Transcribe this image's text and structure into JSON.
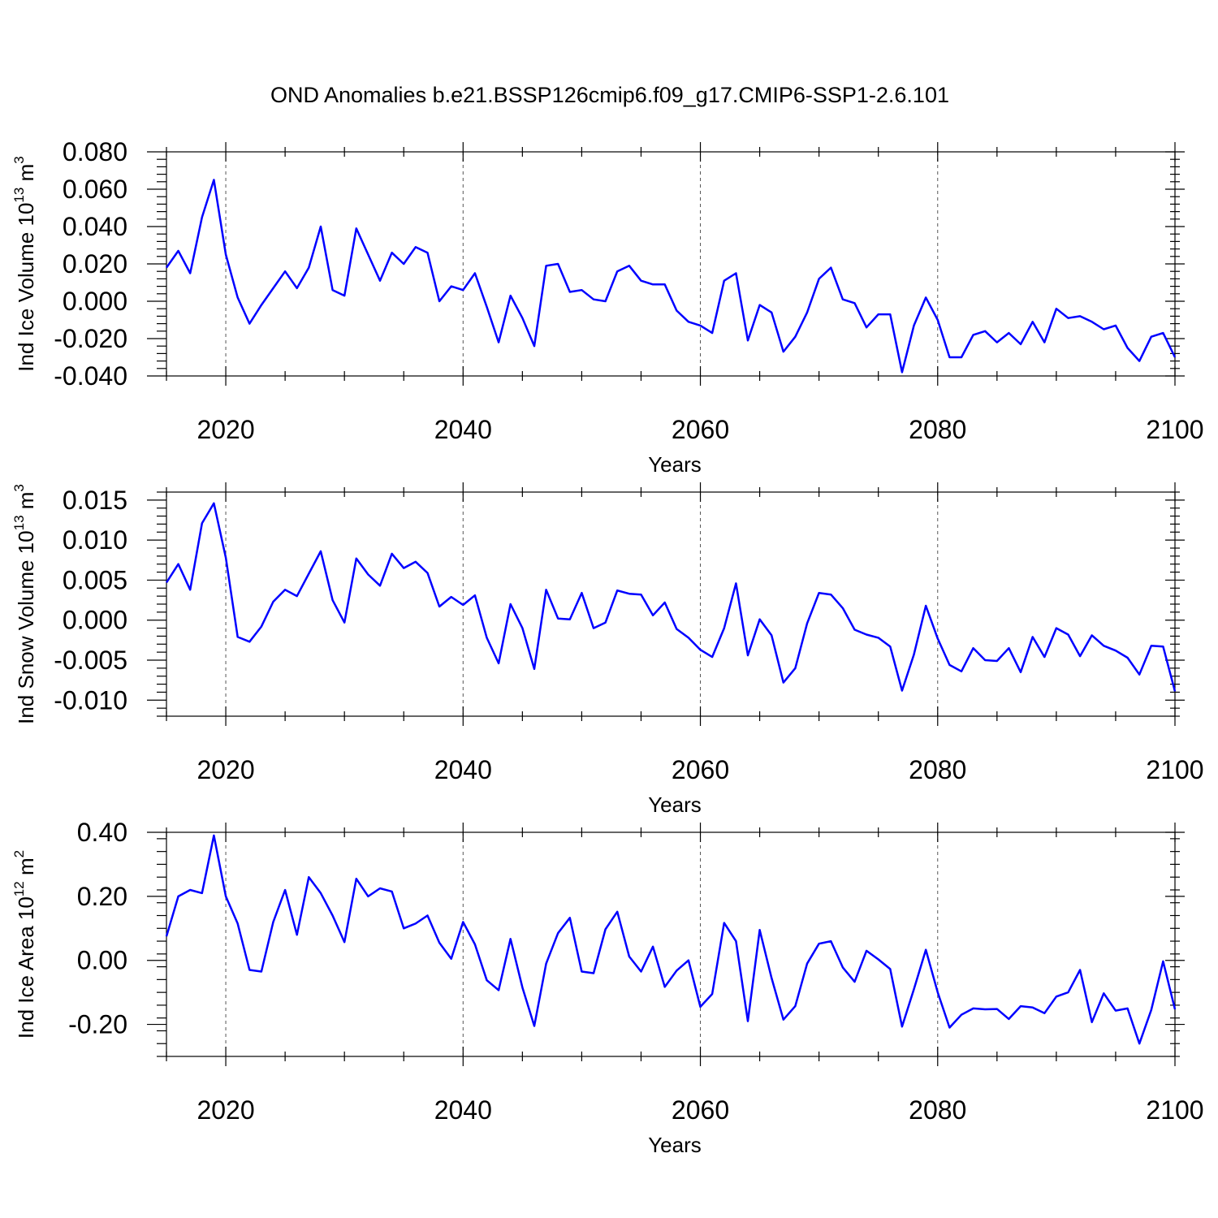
{
  "title": "OND Anomalies b.e21.BSSP126cmip6.f09_g17.CMIP6-SSP1-2.6.101",
  "colors": {
    "line": "#0000ff",
    "axis": "#000000",
    "grid": "#555555"
  },
  "chart_data": [
    {
      "type": "line",
      "ylabel": {
        "main": "Ind Ice Volume 10",
        "exp": "13",
        "unit": " m",
        "unit_exp": "3"
      },
      "xlabel": "Years",
      "xlim": [
        2015,
        2100
      ],
      "ylim": [
        -0.04,
        0.08
      ],
      "xticks": [
        2020,
        2040,
        2060,
        2080,
        2100
      ],
      "xtick_labels": [
        "2020",
        "2040",
        "2060",
        "2080",
        "2100"
      ],
      "yticks": [
        -0.04,
        -0.02,
        0.0,
        0.02,
        0.04,
        0.06,
        0.08
      ],
      "ytick_labels": [
        "-0.040",
        "-0.020",
        "0.000",
        "0.020",
        "0.040",
        "0.060",
        "0.080"
      ],
      "grid": "vertical dashed at major x ticks",
      "series": [
        {
          "x_start": 2015,
          "values": [
            0.018,
            0.027,
            0.015,
            0.045,
            0.065,
            0.025,
            0.002,
            -0.012,
            -0.002,
            0.007,
            0.016,
            0.007,
            0.018,
            0.04,
            0.006,
            0.003,
            0.039,
            0.025,
            0.011,
            0.026,
            0.02,
            0.029,
            0.026,
            0.0,
            0.008,
            0.006,
            0.015,
            -0.003,
            -0.022,
            0.003,
            -0.009,
            -0.024,
            0.019,
            0.02,
            0.005,
            0.006,
            0.001,
            0.0,
            0.016,
            0.019,
            0.011,
            0.009,
            0.009,
            -0.005,
            -0.011,
            -0.013,
            -0.017,
            0.011,
            0.015,
            -0.021,
            -0.002,
            -0.006,
            -0.027,
            -0.019,
            -0.006,
            0.012,
            0.018,
            0.001,
            -0.001,
            -0.014,
            -0.007,
            -0.007,
            -0.038,
            -0.013,
            0.002,
            -0.01,
            -0.03,
            -0.03,
            -0.018,
            -0.016,
            -0.022,
            -0.017,
            -0.023,
            -0.011,
            -0.022,
            -0.004,
            -0.009,
            -0.008,
            -0.011,
            -0.015,
            -0.013,
            -0.025,
            -0.032,
            -0.019,
            -0.017,
            -0.03
          ]
        }
      ]
    },
    {
      "type": "line",
      "ylabel": {
        "main": "Ind Snow Volume 10",
        "exp": "13",
        "unit": " m",
        "unit_exp": "3"
      },
      "xlabel": "Years",
      "xlim": [
        2015,
        2100
      ],
      "ylim": [
        -0.012,
        0.016
      ],
      "xticks": [
        2020,
        2040,
        2060,
        2080,
        2100
      ],
      "xtick_labels": [
        "2020",
        "2040",
        "2060",
        "2080",
        "2100"
      ],
      "yticks": [
        -0.01,
        -0.005,
        0.0,
        0.005,
        0.01,
        0.015
      ],
      "ytick_labels": [
        "-0.010",
        "-0.005",
        "0.000",
        "0.005",
        "0.010",
        "0.015"
      ],
      "grid": "vertical dashed at major x ticks",
      "series": [
        {
          "x_start": 2015,
          "values": [
            0.0047,
            0.007,
            0.0038,
            0.0121,
            0.0146,
            0.0078,
            -0.0021,
            -0.0027,
            -0.0008,
            0.0023,
            0.0038,
            0.003,
            0.0058,
            0.0086,
            0.0025,
            -0.0003,
            0.0077,
            0.0057,
            0.0043,
            0.0083,
            0.0065,
            0.0073,
            0.0059,
            0.0017,
            0.0029,
            0.0019,
            0.0031,
            -0.0022,
            -0.0054,
            0.002,
            -0.001,
            -0.0061,
            0.0038,
            0.0002,
            0.0001,
            0.0034,
            -0.001,
            -0.0003,
            0.0037,
            0.0033,
            0.0032,
            0.0006,
            0.0022,
            -0.0011,
            -0.0022,
            -0.0037,
            -0.0046,
            -0.001,
            0.0046,
            -0.0044,
            0.0001,
            -0.0019,
            -0.0078,
            -0.006,
            -0.0004,
            0.0034,
            0.0032,
            0.0015,
            -0.0012,
            -0.0018,
            -0.0022,
            -0.0033,
            -0.0088,
            -0.0043,
            0.0018,
            -0.0023,
            -0.0056,
            -0.0064,
            -0.0035,
            -0.005,
            -0.0051,
            -0.0035,
            -0.0065,
            -0.0021,
            -0.0046,
            -0.001,
            -0.0018,
            -0.0045,
            -0.0019,
            -0.0032,
            -0.0038,
            -0.0047,
            -0.0068,
            -0.0032,
            -0.0033,
            -0.0089
          ]
        }
      ]
    },
    {
      "type": "line",
      "ylabel": {
        "main": "Ind Ice Area 10",
        "exp": "12",
        "unit": " m",
        "unit_exp": "2"
      },
      "xlabel": "Years",
      "xlim": [
        2015,
        2100
      ],
      "ylim": [
        -0.3,
        0.4
      ],
      "xticks": [
        2020,
        2040,
        2060,
        2080,
        2100
      ],
      "xtick_labels": [
        "2020",
        "2040",
        "2060",
        "2080",
        "2100"
      ],
      "yticks": [
        -0.2,
        0.0,
        0.2,
        0.4
      ],
      "ytick_labels": [
        "-0.20",
        "0.00",
        "0.20",
        "0.40"
      ],
      "grid": "vertical dashed at major x ticks",
      "series": [
        {
          "x_start": 2015,
          "values": [
            0.075,
            0.2,
            0.22,
            0.21,
            0.39,
            0.2,
            0.115,
            -0.03,
            -0.035,
            0.12,
            0.22,
            0.08,
            0.26,
            0.21,
            0.14,
            0.057,
            0.255,
            0.2,
            0.225,
            0.215,
            0.1,
            0.115,
            0.14,
            0.055,
            0.005,
            0.12,
            0.05,
            -0.062,
            -0.093,
            0.067,
            -0.085,
            -0.205,
            -0.01,
            0.085,
            0.133,
            -0.035,
            -0.04,
            0.097,
            0.152,
            0.012,
            -0.035,
            0.043,
            -0.083,
            -0.032,
            0.0,
            -0.145,
            -0.105,
            0.117,
            0.06,
            -0.19,
            0.095,
            -0.055,
            -0.185,
            -0.143,
            -0.01,
            0.052,
            0.06,
            -0.022,
            -0.067,
            0.03,
            0.003,
            -0.027,
            -0.207,
            -0.09,
            0.033,
            -0.1,
            -0.21,
            -0.17,
            -0.15,
            -0.153,
            -0.152,
            -0.183,
            -0.143,
            -0.147,
            -0.165,
            -0.113,
            -0.1,
            -0.03,
            -0.193,
            -0.103,
            -0.157,
            -0.15,
            -0.26,
            -0.155,
            -0.003,
            -0.153
          ]
        }
      ]
    }
  ]
}
